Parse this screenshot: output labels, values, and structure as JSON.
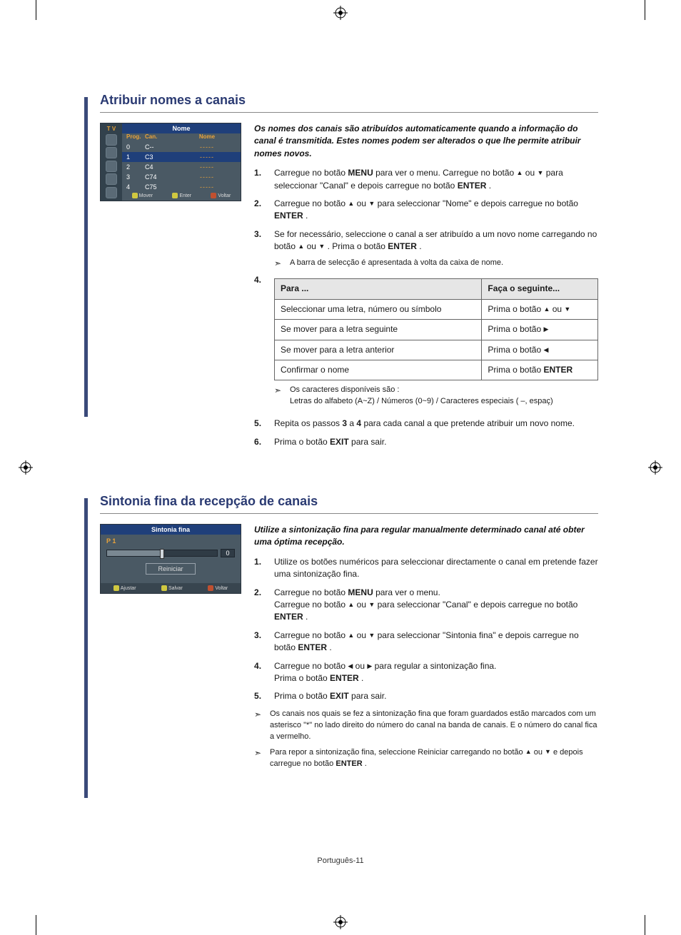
{
  "page_footer": "Português-11",
  "colors": {
    "heading": "#2a3a72",
    "bar": "#3a4a7a",
    "osd_bg": "#4a5964",
    "osd_sidebar": "#32414c",
    "osd_header": "#1f3f7a",
    "osd_accent": "#e9a33a"
  },
  "section1": {
    "title": "Atribuir nomes a canais",
    "intro": "Os nomes dos canais são atribuídos automaticamente quando a informação do canal é transmitida. Estes nomes podem ser alterados o que lhe permite atribuir nomes novos.",
    "osd": {
      "tv_label": "T V",
      "header": "Nome",
      "cols": [
        "Prog.",
        "Can.",
        "Nome"
      ],
      "rows": [
        {
          "prog": "0",
          "can": "C--",
          "name": "-----"
        },
        {
          "prog": "1",
          "can": "C3",
          "name": "-----"
        },
        {
          "prog": "2",
          "can": "C4",
          "name": "-----"
        },
        {
          "prog": "3",
          "can": "C74",
          "name": "-----"
        },
        {
          "prog": "4",
          "can": "C75",
          "name": "-----"
        }
      ],
      "selected_index": 1,
      "footer": {
        "mover": "Mover",
        "enter": "Enter",
        "voltar": "Voltar"
      },
      "footer_icon_colors": {
        "mover": "#d0c840",
        "enter": "#d0c840",
        "voltar": "#c05030"
      }
    },
    "steps": {
      "s1_a": "Carregue no botão ",
      "s1_menu": "MENU",
      "s1_b": " para ver o menu.  Carregue no botão  ",
      "s1_c": " ou ",
      "s1_d": "  para seleccionar \"Canal\" e depois carregue no botão ",
      "s1_enter": "ENTER",
      "s1_e": " .",
      "s2_a": "Carregue no botão  ",
      "s2_b": "  ou  ",
      "s2_c": "  para seleccionar \"Nome\" e depois carregue no botão ",
      "s2_enter": "ENTER",
      "s2_d": " .",
      "s3_a": "Se for necessário, seleccione o canal a ser atribuído a um novo nome carregando no botão  ",
      "s3_b": "  ou  ",
      "s3_c": " . Prima o botão ",
      "s3_enter": "ENTER",
      "s3_d": " .",
      "s3_note": "A barra de selecção é apresentada à volta da caixa de nome.",
      "step4_label": "4.",
      "characters_note_a": "Os caracteres disponíveis são :",
      "characters_note_b": "Letras do alfabeto (A~Z) / Números (0~9) / Caracteres especiais ( –, espaç)",
      "s5_a": "Repita os passos ",
      "s5_b": "3",
      "s5_c": " a ",
      "s5_d": "4",
      "s5_e": " para cada canal a que pretende atribuir um novo nome.",
      "s6_a": "Prima o botão ",
      "s6_exit": "EXIT",
      "s6_b": " para sair."
    },
    "table": {
      "head1": "Para ...",
      "head2": "Faça o seguinte...",
      "rows": [
        {
          "l": "Seleccionar uma letra, número ou símbolo",
          "r_a": "Prima o botão  ",
          "r_b": "  ou  ",
          "r_type": "updown"
        },
        {
          "l": "Se mover para a letra seguinte",
          "r_a": "Prima o botão   ",
          "r_type": "right"
        },
        {
          "l": "Se mover para a letra anterior",
          "r_a": "Prima o botão   ",
          "r_type": "left"
        },
        {
          "l": "Confirmar o nome",
          "r_a": "Prima o botão ",
          "r_bold": "ENTER",
          "r_type": "text"
        }
      ]
    }
  },
  "section2": {
    "title": "Sintonia fina da recepção de canais",
    "intro": "Utilize a sintonização fina para regular manualmente determinado canal até obter uma óptima recepção.",
    "osd": {
      "header": "Sintonia fina",
      "channel": "P 1",
      "value": "0",
      "reset": "Reiniciar",
      "footer": {
        "ajustar": "Ajustar",
        "salvar": "Salvar",
        "voltar": "Voltar"
      },
      "footer_icon_colors": {
        "ajustar": "#d0c840",
        "salvar": "#d0c840",
        "voltar": "#c05030"
      }
    },
    "steps": {
      "s1": "Utilize os botões numéricos para seleccionar directamente o canal em pretende fazer uma sintonização fina.",
      "s2_a": "Carregue no botão ",
      "s2_menu": "MENU",
      "s2_b": " para ver o menu.",
      "s2_c": "Carregue no botão  ",
      "s2_d": "  ou  ",
      "s2_e": "  para seleccionar \"Canal\" e depois carregue no botão ",
      "s2_enter": "ENTER",
      "s2_f": " .",
      "s3_a": "Carregue no botão  ",
      "s3_b": "  ou  ",
      "s3_c": "  para seleccionar \"Sintonia fina\"  e depois carregue no botão ",
      "s3_enter": "ENTER",
      "s3_d": " .",
      "s4_a": "Carregue no botão   ",
      "s4_b": "  ou  ",
      "s4_c": "  para regular a sintonização fina.",
      "s4_d": "Prima o botão ",
      "s4_enter": "ENTER",
      "s4_e": " .",
      "s5_a": "Prima o botão ",
      "s5_exit": "EXIT",
      "s5_b": " para sair."
    },
    "notes": {
      "n1": "Os canais nos quais se fez a sintonização fina que foram guardados estão marcados com um asterisco \"*\" no lado direito do número do canal na banda de canais. E o número do canal fica a vermelho.",
      "n2_a": "Para repor a sintonização fina, seleccione Reiniciar carregando no botão  ",
      "n2_b": "  ou  ",
      "n2_c": "  e depois carregue no botão ",
      "n2_enter": "ENTER",
      "n2_d": " ."
    }
  }
}
